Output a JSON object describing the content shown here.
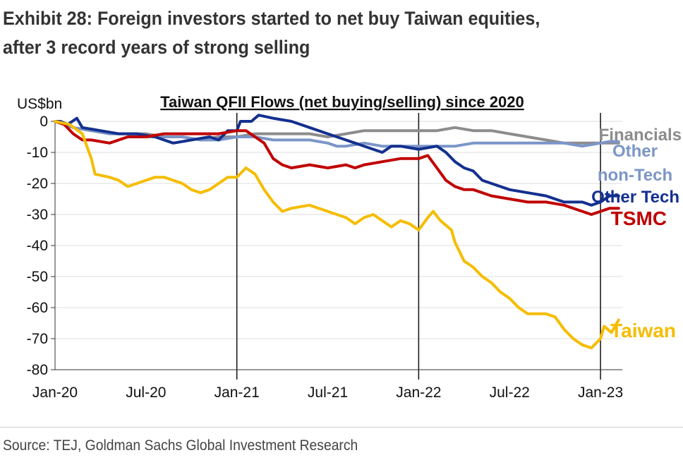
{
  "exhibit": {
    "title_line1": "Exhibit 28: Foreign investors started to net buy Taiwan equities,",
    "title_line2": "after 3 record years of strong selling"
  },
  "source": "Source: TEJ, Goldman Sachs Global Investment Research",
  "chart_data": {
    "type": "line",
    "title": "Taiwan QFII Flows (net buying/selling) since 2020",
    "ylabel": "US$bn",
    "xlabel": "",
    "ylim": [
      -80,
      0
    ],
    "yticks": [
      0,
      -10,
      -20,
      -30,
      -40,
      -50,
      -60,
      -70,
      -80
    ],
    "xticks": [
      "Jan-20",
      "Jul-20",
      "Jan-21",
      "Jul-21",
      "Jan-22",
      "Jul-22",
      "Jan-23"
    ],
    "xrange": [
      2020.0,
      2023.12
    ],
    "vlines": [
      2021.0,
      2022.0,
      2023.0
    ],
    "grid": "horizontal",
    "legend": "direct labels at line ends (right)",
    "series": [
      {
        "name": "Financials",
        "label_lines": [
          "Financials"
        ],
        "color": "#8c8c8c",
        "points": [
          [
            2020.0,
            0
          ],
          [
            2020.05,
            -1
          ],
          [
            2020.1,
            -2
          ],
          [
            2020.2,
            -3
          ],
          [
            2020.3,
            -4
          ],
          [
            2020.4,
            -4
          ],
          [
            2020.5,
            -4
          ],
          [
            2020.6,
            -5
          ],
          [
            2020.7,
            -5
          ],
          [
            2020.8,
            -6
          ],
          [
            2020.9,
            -5
          ],
          [
            2021.0,
            -5
          ],
          [
            2021.1,
            -4
          ],
          [
            2021.2,
            -4
          ],
          [
            2021.3,
            -4
          ],
          [
            2021.4,
            -4
          ],
          [
            2021.5,
            -5
          ],
          [
            2021.6,
            -4
          ],
          [
            2021.7,
            -3
          ],
          [
            2021.8,
            -3
          ],
          [
            2021.9,
            -3
          ],
          [
            2022.0,
            -3
          ],
          [
            2022.1,
            -3
          ],
          [
            2022.2,
            -2
          ],
          [
            2022.3,
            -3
          ],
          [
            2022.4,
            -3
          ],
          [
            2022.5,
            -4
          ],
          [
            2022.6,
            -5
          ],
          [
            2022.7,
            -6
          ],
          [
            2022.8,
            -7
          ],
          [
            2022.9,
            -7
          ],
          [
            2023.0,
            -7
          ],
          [
            2023.1,
            -7
          ]
        ]
      },
      {
        "name": "Other non-Tech",
        "label_lines": [
          "Other",
          "non-Tech"
        ],
        "color": "#7b96c8",
        "points": [
          [
            2020.0,
            0
          ],
          [
            2020.05,
            -1
          ],
          [
            2020.1,
            -2
          ],
          [
            2020.2,
            -3
          ],
          [
            2020.3,
            -4
          ],
          [
            2020.4,
            -4
          ],
          [
            2020.5,
            -5
          ],
          [
            2020.6,
            -5
          ],
          [
            2020.7,
            -5
          ],
          [
            2020.8,
            -6
          ],
          [
            2020.9,
            -6
          ],
          [
            2021.0,
            -5
          ],
          [
            2021.1,
            -5
          ],
          [
            2021.2,
            -6
          ],
          [
            2021.3,
            -6
          ],
          [
            2021.4,
            -6
          ],
          [
            2021.5,
            -7
          ],
          [
            2021.55,
            -8
          ],
          [
            2021.6,
            -8
          ],
          [
            2021.7,
            -7
          ],
          [
            2021.8,
            -8
          ],
          [
            2021.9,
            -8
          ],
          [
            2022.0,
            -8
          ],
          [
            2022.1,
            -8
          ],
          [
            2022.2,
            -8
          ],
          [
            2022.3,
            -7
          ],
          [
            2022.4,
            -7
          ],
          [
            2022.5,
            -7
          ],
          [
            2022.6,
            -7
          ],
          [
            2022.7,
            -7
          ],
          [
            2022.8,
            -7
          ],
          [
            2022.9,
            -8
          ],
          [
            2023.0,
            -7
          ],
          [
            2023.05,
            -6.5
          ],
          [
            2023.1,
            -6.5
          ]
        ]
      },
      {
        "name": "Other Tech",
        "label_lines": [
          "Other Tech"
        ],
        "color": "#13308f",
        "points": [
          [
            2020.0,
            0
          ],
          [
            2020.03,
            0
          ],
          [
            2020.07,
            -1
          ],
          [
            2020.12,
            1
          ],
          [
            2020.15,
            -2
          ],
          [
            2020.25,
            -3
          ],
          [
            2020.35,
            -4
          ],
          [
            2020.45,
            -4
          ],
          [
            2020.55,
            -5
          ],
          [
            2020.65,
            -7
          ],
          [
            2020.75,
            -6
          ],
          [
            2020.85,
            -5
          ],
          [
            2020.9,
            -6
          ],
          [
            2020.95,
            -3
          ],
          [
            2021.0,
            -3
          ],
          [
            2021.02,
            0
          ],
          [
            2021.08,
            0
          ],
          [
            2021.12,
            2
          ],
          [
            2021.2,
            1
          ],
          [
            2021.3,
            0
          ],
          [
            2021.35,
            -1
          ],
          [
            2021.4,
            -2
          ],
          [
            2021.5,
            -4
          ],
          [
            2021.6,
            -6
          ],
          [
            2021.65,
            -7
          ],
          [
            2021.75,
            -9
          ],
          [
            2021.8,
            -10
          ],
          [
            2021.85,
            -8
          ],
          [
            2021.9,
            -8
          ],
          [
            2022.0,
            -9
          ],
          [
            2022.1,
            -8
          ],
          [
            2022.15,
            -10
          ],
          [
            2022.2,
            -13
          ],
          [
            2022.25,
            -15
          ],
          [
            2022.3,
            -16
          ],
          [
            2022.35,
            -19
          ],
          [
            2022.4,
            -20
          ],
          [
            2022.45,
            -21
          ],
          [
            2022.5,
            -22
          ],
          [
            2022.6,
            -23
          ],
          [
            2022.7,
            -24
          ],
          [
            2022.8,
            -26
          ],
          [
            2022.9,
            -26
          ],
          [
            2022.95,
            -27
          ],
          [
            2023.0,
            -26
          ],
          [
            2023.05,
            -24
          ],
          [
            2023.1,
            -24
          ]
        ]
      },
      {
        "name": "TSMC",
        "label_lines": [
          "TSMC"
        ],
        "color": "#c00000",
        "points": [
          [
            2020.0,
            0
          ],
          [
            2020.05,
            -1
          ],
          [
            2020.1,
            -4
          ],
          [
            2020.15,
            -6
          ],
          [
            2020.2,
            -6
          ],
          [
            2020.3,
            -7
          ],
          [
            2020.4,
            -5
          ],
          [
            2020.5,
            -5
          ],
          [
            2020.6,
            -4
          ],
          [
            2020.7,
            -4
          ],
          [
            2020.8,
            -4
          ],
          [
            2020.9,
            -4
          ],
          [
            2021.0,
            -3
          ],
          [
            2021.05,
            -3
          ],
          [
            2021.1,
            -5
          ],
          [
            2021.15,
            -7
          ],
          [
            2021.2,
            -12
          ],
          [
            2021.25,
            -14
          ],
          [
            2021.3,
            -15
          ],
          [
            2021.4,
            -14
          ],
          [
            2021.5,
            -15
          ],
          [
            2021.6,
            -14
          ],
          [
            2021.65,
            -15
          ],
          [
            2021.7,
            -14
          ],
          [
            2021.8,
            -13
          ],
          [
            2021.9,
            -12
          ],
          [
            2022.0,
            -12
          ],
          [
            2022.05,
            -11
          ],
          [
            2022.1,
            -15
          ],
          [
            2022.15,
            -19
          ],
          [
            2022.2,
            -21
          ],
          [
            2022.25,
            -22
          ],
          [
            2022.3,
            -22
          ],
          [
            2022.4,
            -24
          ],
          [
            2022.5,
            -25
          ],
          [
            2022.6,
            -26
          ],
          [
            2022.7,
            -26
          ],
          [
            2022.8,
            -27
          ],
          [
            2022.9,
            -29
          ],
          [
            2022.95,
            -30
          ],
          [
            2023.0,
            -29
          ],
          [
            2023.05,
            -28
          ],
          [
            2023.1,
            -28
          ]
        ]
      },
      {
        "name": "Taiwan",
        "label_lines": [
          "Taiwan"
        ],
        "color": "#f5bd00",
        "points": [
          [
            2020.0,
            0
          ],
          [
            2020.08,
            -1
          ],
          [
            2020.15,
            -4
          ],
          [
            2020.2,
            -12
          ],
          [
            2020.22,
            -17
          ],
          [
            2020.3,
            -18
          ],
          [
            2020.35,
            -19
          ],
          [
            2020.4,
            -21
          ],
          [
            2020.5,
            -19
          ],
          [
            2020.55,
            -18
          ],
          [
            2020.6,
            -18
          ],
          [
            2020.7,
            -20
          ],
          [
            2020.75,
            -22
          ],
          [
            2020.8,
            -23
          ],
          [
            2020.85,
            -22
          ],
          [
            2020.9,
            -20
          ],
          [
            2020.95,
            -18
          ],
          [
            2021.0,
            -18
          ],
          [
            2021.05,
            -15
          ],
          [
            2021.1,
            -17
          ],
          [
            2021.15,
            -22
          ],
          [
            2021.2,
            -26
          ],
          [
            2021.25,
            -29
          ],
          [
            2021.3,
            -28
          ],
          [
            2021.4,
            -27
          ],
          [
            2021.5,
            -29
          ],
          [
            2021.6,
            -31
          ],
          [
            2021.65,
            -33
          ],
          [
            2021.7,
            -31
          ],
          [
            2021.75,
            -30
          ],
          [
            2021.8,
            -32
          ],
          [
            2021.85,
            -34
          ],
          [
            2021.9,
            -32
          ],
          [
            2021.95,
            -33
          ],
          [
            2022.0,
            -35
          ],
          [
            2022.05,
            -31
          ],
          [
            2022.08,
            -29
          ],
          [
            2022.12,
            -32
          ],
          [
            2022.18,
            -35
          ],
          [
            2022.2,
            -39
          ],
          [
            2022.25,
            -45
          ],
          [
            2022.3,
            -47
          ],
          [
            2022.35,
            -50
          ],
          [
            2022.4,
            -52
          ],
          [
            2022.45,
            -55
          ],
          [
            2022.5,
            -57
          ],
          [
            2022.55,
            -60
          ],
          [
            2022.6,
            -62
          ],
          [
            2022.7,
            -62
          ],
          [
            2022.75,
            -63
          ],
          [
            2022.8,
            -67
          ],
          [
            2022.85,
            -70
          ],
          [
            2022.9,
            -72
          ],
          [
            2022.95,
            -73
          ],
          [
            2023.0,
            -70
          ],
          [
            2023.02,
            -66
          ],
          [
            2023.06,
            -68
          ],
          [
            2023.1,
            -64
          ]
        ]
      }
    ]
  }
}
